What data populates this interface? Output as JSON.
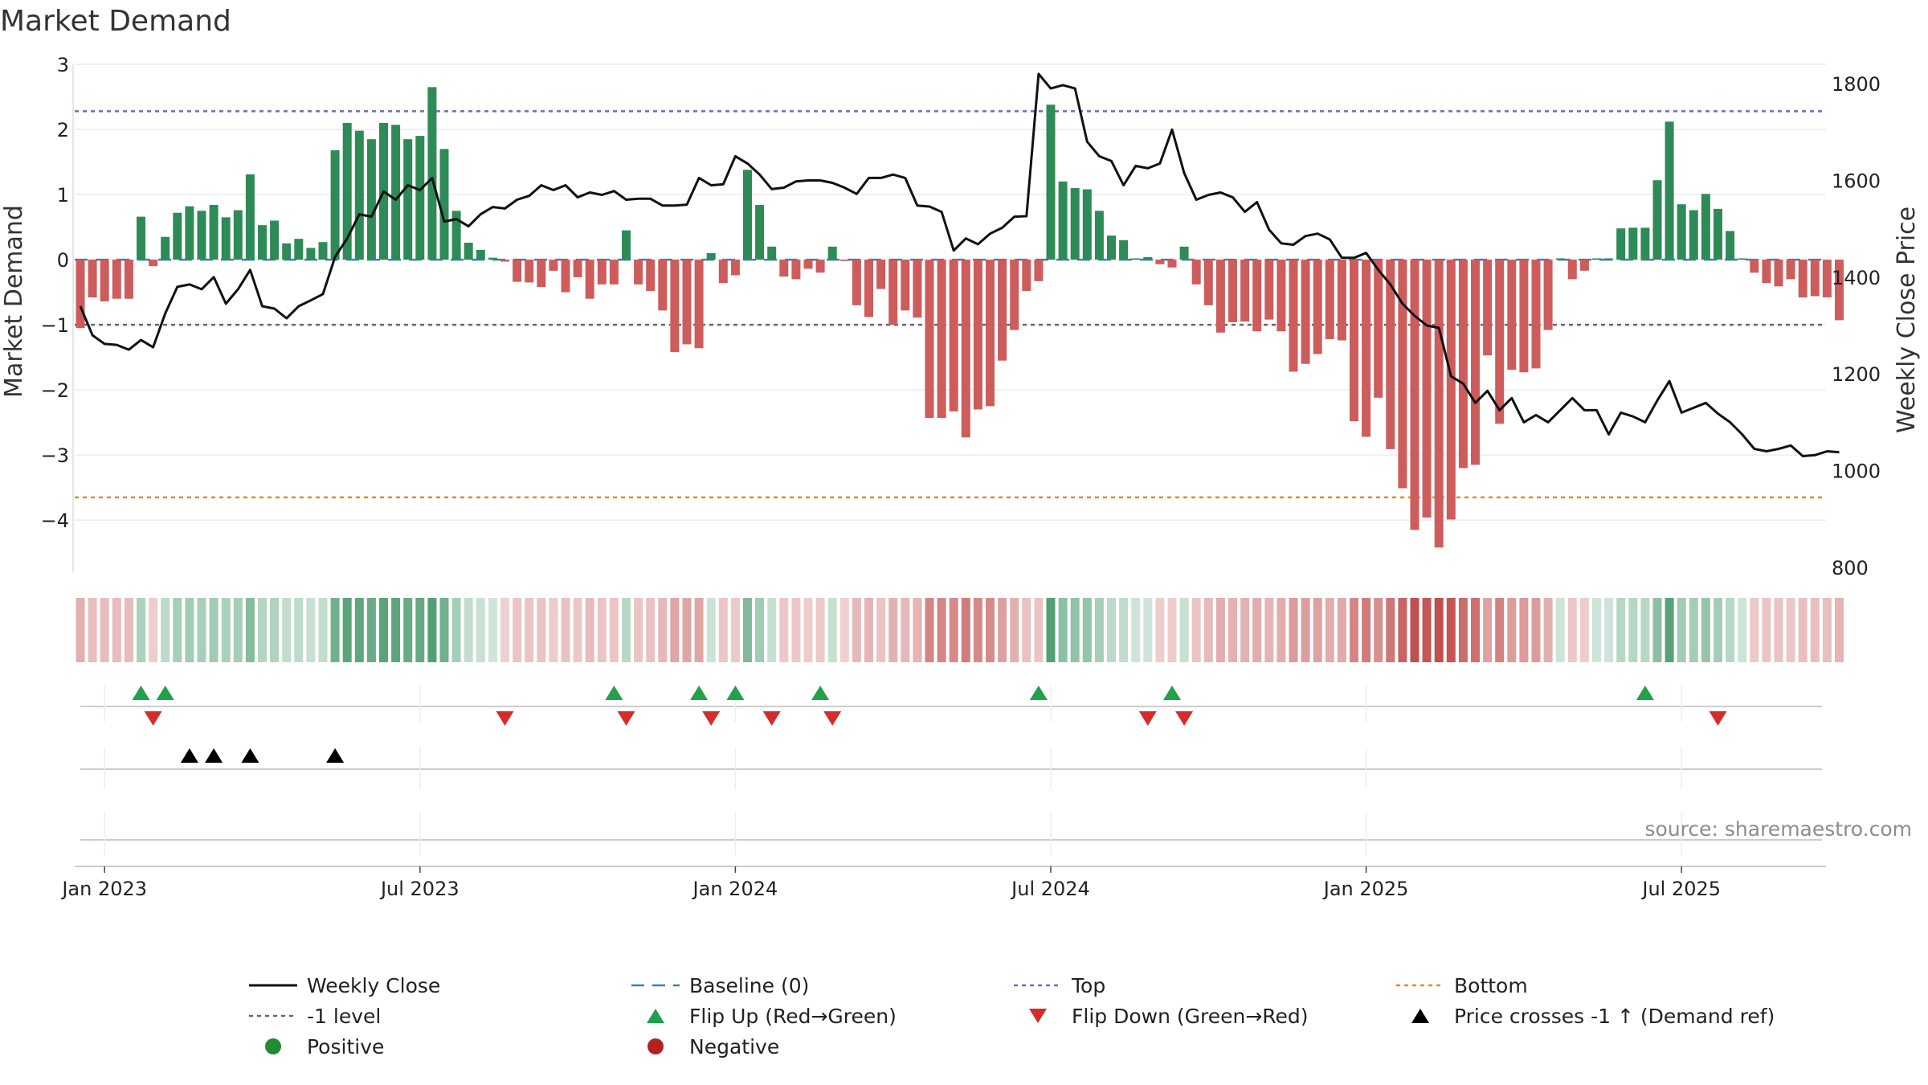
{
  "chart_data": {
    "type": "bar",
    "title": "Market Demand",
    "ylabel_left": "Market Demand",
    "ylabel_right": "Weekly Close Price",
    "source": "source: sharemaestro.com",
    "left_axis": {
      "ylim": [
        -4.8,
        3.0
      ],
      "ticks": [
        3,
        2,
        1,
        0,
        -1,
        -2,
        -3,
        -4
      ],
      "tick_labels": [
        "3",
        "2",
        "1",
        "0",
        "−1",
        "−2",
        "−3",
        "−4"
      ]
    },
    "right_axis": {
      "ylim": [
        790,
        1840
      ],
      "ticks": [
        1800,
        1600,
        1400,
        1200,
        1000,
        800
      ],
      "tick_labels": [
        "1800",
        "1600",
        "1400",
        "1200",
        "1000",
        "800"
      ]
    },
    "reference_lines": {
      "top": 2.28,
      "bottom": -3.65,
      "minus_one": -1.0,
      "baseline": 0
    },
    "x_ticks": [
      {
        "week": 2,
        "label": "Jan 2023"
      },
      {
        "week": 28,
        "label": "Jul 2023"
      },
      {
        "week": 54,
        "label": "Jan 2024"
      },
      {
        "week": 80,
        "label": "Jul 2024"
      },
      {
        "week": 106,
        "label": "Jan 2025"
      },
      {
        "week": 132,
        "label": "Jul 2025"
      }
    ],
    "demand": [
      -1.05,
      -0.58,
      -0.64,
      -0.6,
      -0.6,
      0.66,
      -0.1,
      0.35,
      0.72,
      0.82,
      0.75,
      0.84,
      0.65,
      0.76,
      1.31,
      0.53,
      0.6,
      0.25,
      0.32,
      0.18,
      0.27,
      1.68,
      2.1,
      1.98,
      1.85,
      2.1,
      2.07,
      1.85,
      1.9,
      2.65,
      1.7,
      0.75,
      0.26,
      0.15,
      0.03,
      -0.03,
      -0.34,
      -0.35,
      -0.42,
      -0.17,
      -0.5,
      -0.27,
      -0.6,
      -0.38,
      -0.38,
      0.45,
      -0.38,
      -0.48,
      -0.78,
      -1.42,
      -1.3,
      -1.36,
      0.1,
      -0.36,
      -0.24,
      1.38,
      0.84,
      0.2,
      -0.26,
      -0.3,
      -0.14,
      -0.2,
      0.2,
      -0.02,
      -0.7,
      -0.88,
      -0.45,
      -1.0,
      -0.78,
      -0.89,
      -2.43,
      -2.43,
      -2.33,
      -2.73,
      -2.3,
      -2.25,
      -1.55,
      -1.08,
      -0.48,
      -0.33,
      2.38,
      1.2,
      1.1,
      1.08,
      0.75,
      0.37,
      0.3,
      0.02,
      0.04,
      -0.07,
      -0.12,
      0.2,
      -0.38,
      -0.7,
      -1.12,
      -0.96,
      -0.95,
      -1.1,
      -0.92,
      -1.1,
      -1.72,
      -1.6,
      -1.45,
      -1.22,
      -1.24,
      -2.48,
      -2.72,
      -2.12,
      -2.91,
      -3.51,
      -4.15,
      -3.96,
      -4.42,
      -3.99,
      -3.2,
      -3.15,
      -1.47,
      -2.52,
      -1.69,
      -1.73,
      -1.67,
      -1.08,
      0.02,
      -0.3,
      -0.17,
      0.02,
      0.02,
      0.48,
      0.49,
      0.49,
      1.22,
      2.12,
      0.85,
      0.76,
      1.01,
      0.78,
      0.44,
      0.02,
      -0.2,
      -0.36,
      -0.41,
      -0.3,
      -0.58,
      -0.56,
      -0.58,
      -0.93
    ],
    "price": [
      1340,
      1280,
      1262,
      1260,
      1250,
      1270,
      1255,
      1325,
      1380,
      1385,
      1375,
      1400,
      1345,
      1375,
      1415,
      1340,
      1335,
      1315,
      1340,
      1352,
      1365,
      1442,
      1480,
      1530,
      1525,
      1577,
      1560,
      1590,
      1580,
      1605,
      1515,
      1520,
      1505,
      1530,
      1545,
      1542,
      1560,
      1568,
      1590,
      1580,
      1590,
      1565,
      1575,
      1570,
      1578,
      1560,
      1562,
      1562,
      1548,
      1548,
      1550,
      1605,
      1590,
      1592,
      1650,
      1635,
      1612,
      1582,
      1585,
      1598,
      1600,
      1600,
      1595,
      1585,
      1572,
      1605,
      1605,
      1612,
      1605,
      1548,
      1546,
      1535,
      1455,
      1480,
      1468,
      1490,
      1502,
      1525,
      1526,
      1820,
      1790,
      1797,
      1790,
      1680,
      1650,
      1640,
      1590,
      1630,
      1625,
      1635,
      1705,
      1615,
      1560,
      1570,
      1575,
      1565,
      1535,
      1555,
      1498,
      1470,
      1467,
      1485,
      1490,
      1478,
      1440,
      1440,
      1450,
      1415,
      1385,
      1345,
      1320,
      1300,
      1295,
      1195,
      1180,
      1140,
      1165,
      1125,
      1150,
      1100,
      1115,
      1100,
      1125,
      1150,
      1125,
      1125,
      1075,
      1120,
      1112,
      1100,
      1145,
      1185,
      1120,
      1130,
      1140,
      1118,
      1100,
      1075,
      1045,
      1040,
      1045,
      1052,
      1030,
      1032,
      1040,
      1038
    ],
    "flip_up_weeks": [
      5,
      7,
      44,
      51,
      54,
      61,
      79,
      90,
      129
    ],
    "flip_down_weeks": [
      6,
      35,
      45,
      52,
      57,
      62,
      88,
      91,
      135
    ],
    "price_cross_weeks": [
      9,
      11,
      14,
      21
    ],
    "legend": [
      {
        "key": "weekly-close",
        "label": "Weekly Close",
        "color": "#111111"
      },
      {
        "key": "baseline",
        "label": "Baseline (0)",
        "color": "#3a7fc0"
      },
      {
        "key": "top",
        "label": "Top",
        "color": "#6b6bc8"
      },
      {
        "key": "bottom",
        "label": "Bottom",
        "color": "#e08a2a"
      },
      {
        "key": "minus-one",
        "label": "-1 level",
        "color": "#666666"
      },
      {
        "key": "flip-up",
        "label": "Flip Up (Red→Green)",
        "color": "#22a04b"
      },
      {
        "key": "flip-down",
        "label": "Flip Down (Green→Red)",
        "color": "#d62b2b"
      },
      {
        "key": "price-cross",
        "label": "Price crosses -1 ↑ (Demand ref)",
        "color": "#000000"
      },
      {
        "key": "positive",
        "label": "Positive",
        "color": "#228b33"
      },
      {
        "key": "negative",
        "label": "Negative",
        "color": "#b22222"
      }
    ],
    "colors": {
      "positive_bar": "#2e8b57",
      "negative_bar": "#cd5c5c"
    }
  }
}
